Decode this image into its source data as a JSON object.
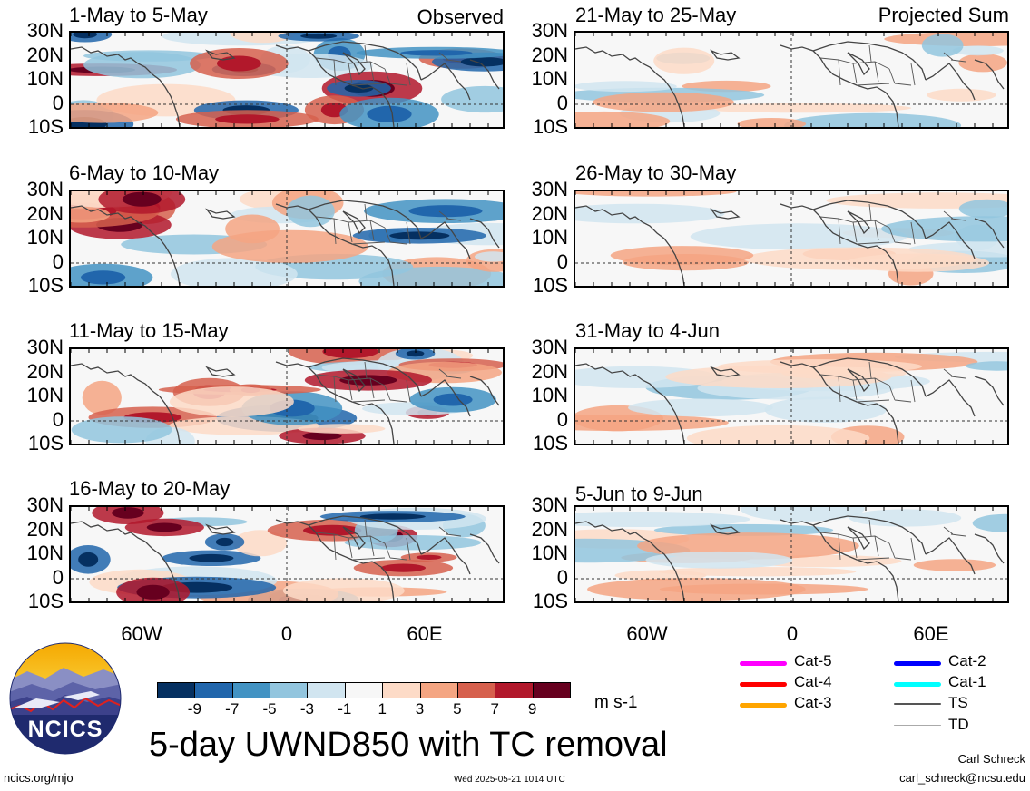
{
  "status_left": "Observed",
  "status_right": "Projected Sum",
  "panels_left": [
    {
      "title": "1-May to 5-May"
    },
    {
      "title": "6-May to 10-May"
    },
    {
      "title": "11-May to 15-May"
    },
    {
      "title": "16-May to 20-May"
    }
  ],
  "panels_right": [
    {
      "title": "21-May to 25-May"
    },
    {
      "title": "26-May to 30-May"
    },
    {
      "title": "31-May to 4-Jun"
    },
    {
      "title": "5-Jun to 9-Jun"
    }
  ],
  "lat_labels": [
    "30N",
    "20N",
    "10N",
    "0",
    "10S"
  ],
  "lon_labels": [
    "60W",
    "0",
    "60E"
  ],
  "colorbar": {
    "labels": [
      "-9",
      "-7",
      "-5",
      "-3",
      "-1",
      "1",
      "3",
      "5",
      "7",
      "9"
    ],
    "colors": [
      "#053061",
      "#2166ac",
      "#4393c3",
      "#92c5de",
      "#d1e5f0",
      "#f7f7f7",
      "#fddbc7",
      "#f4a582",
      "#d6604d",
      "#b2182b",
      "#67001f"
    ],
    "units": "m s-1"
  },
  "main_title": "5-day UWND850 with TC removal",
  "logo_text": "NCICS",
  "legend": [
    {
      "label": "Cat-5",
      "color": "#ff00ff"
    },
    {
      "label": "Cat-4",
      "color": "#ff0000"
    },
    {
      "label": "Cat-3",
      "color": "#ffa500"
    },
    {
      "label": "Cat-2",
      "color": "#0000ff"
    },
    {
      "label": "Cat-1",
      "color": "#00ffff"
    },
    {
      "label": "TS",
      "color": "#555555"
    },
    {
      "label": "TD",
      "color": "#aaaaaa"
    }
  ],
  "footer": {
    "url": "ncics.org/mjo",
    "timestamp": "Wed 2025-05-21 1014 UTC",
    "author": "Carl Schreck",
    "email": "carl_schreck@ncsu.edu"
  }
}
